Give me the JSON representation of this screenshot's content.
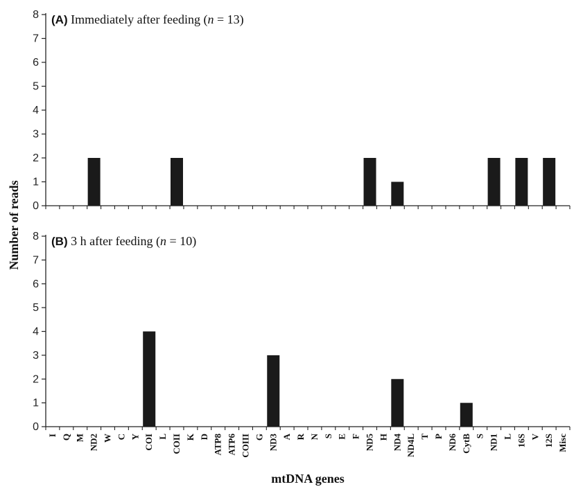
{
  "chart_data": {
    "type": "bar",
    "ylabel": "Number of reads",
    "xlabel": "mtDNA genes",
    "categories": [
      "I",
      "Q",
      "M",
      "ND2",
      "W",
      "C",
      "Y",
      "COI",
      "L",
      "COII",
      "K",
      "D",
      "ATP8",
      "ATP6",
      "COIII",
      "G",
      "ND3",
      "A",
      "R",
      "N",
      "S",
      "E",
      "F",
      "ND5",
      "H",
      "ND4",
      "ND4L",
      "T",
      "P",
      "ND6",
      "CytB",
      "S",
      "ND1",
      "L",
      "16S",
      "V",
      "12S",
      "Misc"
    ],
    "ylim": [
      0,
      8
    ],
    "yticks": [
      0,
      1,
      2,
      3,
      4,
      5,
      6,
      7,
      8
    ],
    "bar_color": "#1a1a1a",
    "panels": [
      {
        "tag": "(A)",
        "title_pre": " Immediately after feeding (",
        "title_n": "n",
        "title_post": " = 13)",
        "values": [
          0,
          0,
          0,
          2,
          0,
          0,
          0,
          0,
          0,
          2,
          0,
          0,
          0,
          0,
          0,
          0,
          0,
          0,
          0,
          0,
          0,
          0,
          0,
          2,
          0,
          1,
          0,
          0,
          0,
          0,
          0,
          0,
          2,
          0,
          2,
          0,
          2,
          0
        ]
      },
      {
        "tag": "(B)",
        "title_pre": " 3 h after feeding (",
        "title_n": "n",
        "title_post": " = 10)",
        "values": [
          0,
          0,
          0,
          0,
          0,
          0,
          0,
          4,
          0,
          0,
          0,
          0,
          0,
          0,
          0,
          0,
          3,
          0,
          0,
          0,
          0,
          0,
          0,
          0,
          0,
          2,
          0,
          0,
          0,
          0,
          1,
          0,
          0,
          0,
          0,
          0,
          0,
          0
        ]
      }
    ]
  }
}
